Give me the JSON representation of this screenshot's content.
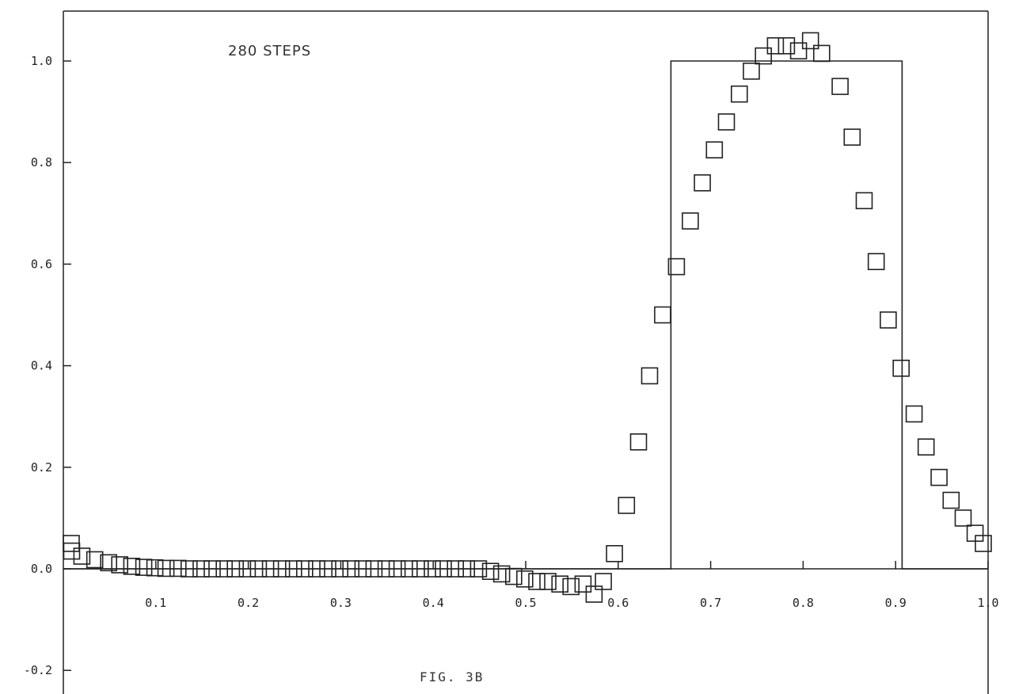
{
  "chart_data": {
    "type": "scatter",
    "annotation": "280 STEPS",
    "caption": "FIG. 3B",
    "xlim": [
      0.0,
      1.0
    ],
    "ylim": [
      -0.2,
      1.1
    ],
    "x_tick_labels": [
      "0.1",
      "0.2",
      "0.3",
      "0.4",
      "0.5",
      "0.6",
      "0.7",
      "0.8",
      "0.9",
      "1.0"
    ],
    "x_tick_values": [
      0.1,
      0.2,
      0.3,
      0.4,
      0.5,
      0.6,
      0.7,
      0.8,
      0.9,
      1.0
    ],
    "y_tick_labels": [
      "-0.2",
      "0.0",
      "0.2",
      "0.4",
      "0.6",
      "0.8",
      "1.0"
    ],
    "y_tick_values": [
      -0.2,
      0.0,
      0.2,
      0.4,
      0.6,
      0.8,
      1.0
    ],
    "grid": false,
    "series": [
      {
        "kind": "step-line",
        "x": [
          0.0,
          0.657,
          0.657,
          0.907,
          0.907,
          1.0
        ],
        "y": [
          0.0,
          0.0,
          1.0,
          1.0,
          0.0,
          0.0
        ]
      },
      {
        "kind": "square-markers",
        "x": [
          0.0,
          0.009,
          0.02,
          0.034,
          0.049,
          0.061,
          0.074,
          0.087,
          0.099,
          0.111,
          0.124,
          0.136,
          0.149,
          0.161,
          0.174,
          0.186,
          0.199,
          0.211,
          0.224,
          0.236,
          0.249,
          0.261,
          0.274,
          0.286,
          0.299,
          0.311,
          0.324,
          0.336,
          0.349,
          0.361,
          0.374,
          0.386,
          0.399,
          0.411,
          0.424,
          0.436,
          0.449,
          0.462,
          0.474,
          0.487,
          0.499,
          0.512,
          0.524,
          0.537,
          0.549,
          0.562,
          0.574,
          0.584,
          0.596,
          0.609,
          0.622,
          0.634,
          0.648,
          0.663,
          0.678,
          0.691,
          0.704,
          0.717,
          0.731,
          0.744,
          0.757,
          0.77,
          0.782,
          0.795,
          0.808,
          0.82,
          0.84,
          0.853,
          0.866,
          0.879,
          0.892,
          0.906,
          0.92,
          0.933,
          0.947,
          0.96,
          0.973,
          0.986,
          0.998
        ],
        "y": [
          0.05,
          0.035,
          0.025,
          0.018,
          0.012,
          0.008,
          0.005,
          0.003,
          0.002,
          0.001,
          0.001,
          0.0,
          0.0,
          0.0,
          0.0,
          0.0,
          0.0,
          0.0,
          0.0,
          0.0,
          0.0,
          0.0,
          0.0,
          0.0,
          0.0,
          0.0,
          0.0,
          0.0,
          0.0,
          0.0,
          0.0,
          0.0,
          0.0,
          0.0,
          0.0,
          0.0,
          0.0,
          -0.005,
          -0.01,
          -0.015,
          -0.02,
          -0.025,
          -0.025,
          -0.03,
          -0.035,
          -0.03,
          -0.05,
          -0.025,
          0.03,
          0.125,
          0.25,
          0.38,
          0.5,
          0.595,
          0.685,
          0.76,
          0.825,
          0.88,
          0.935,
          0.98,
          1.01,
          1.03,
          1.03,
          1.02,
          1.04,
          1.015,
          0.95,
          0.85,
          0.725,
          0.605,
          0.49,
          0.395,
          0.305,
          0.24,
          0.18,
          0.135,
          0.1,
          0.07,
          0.05
        ]
      }
    ]
  }
}
